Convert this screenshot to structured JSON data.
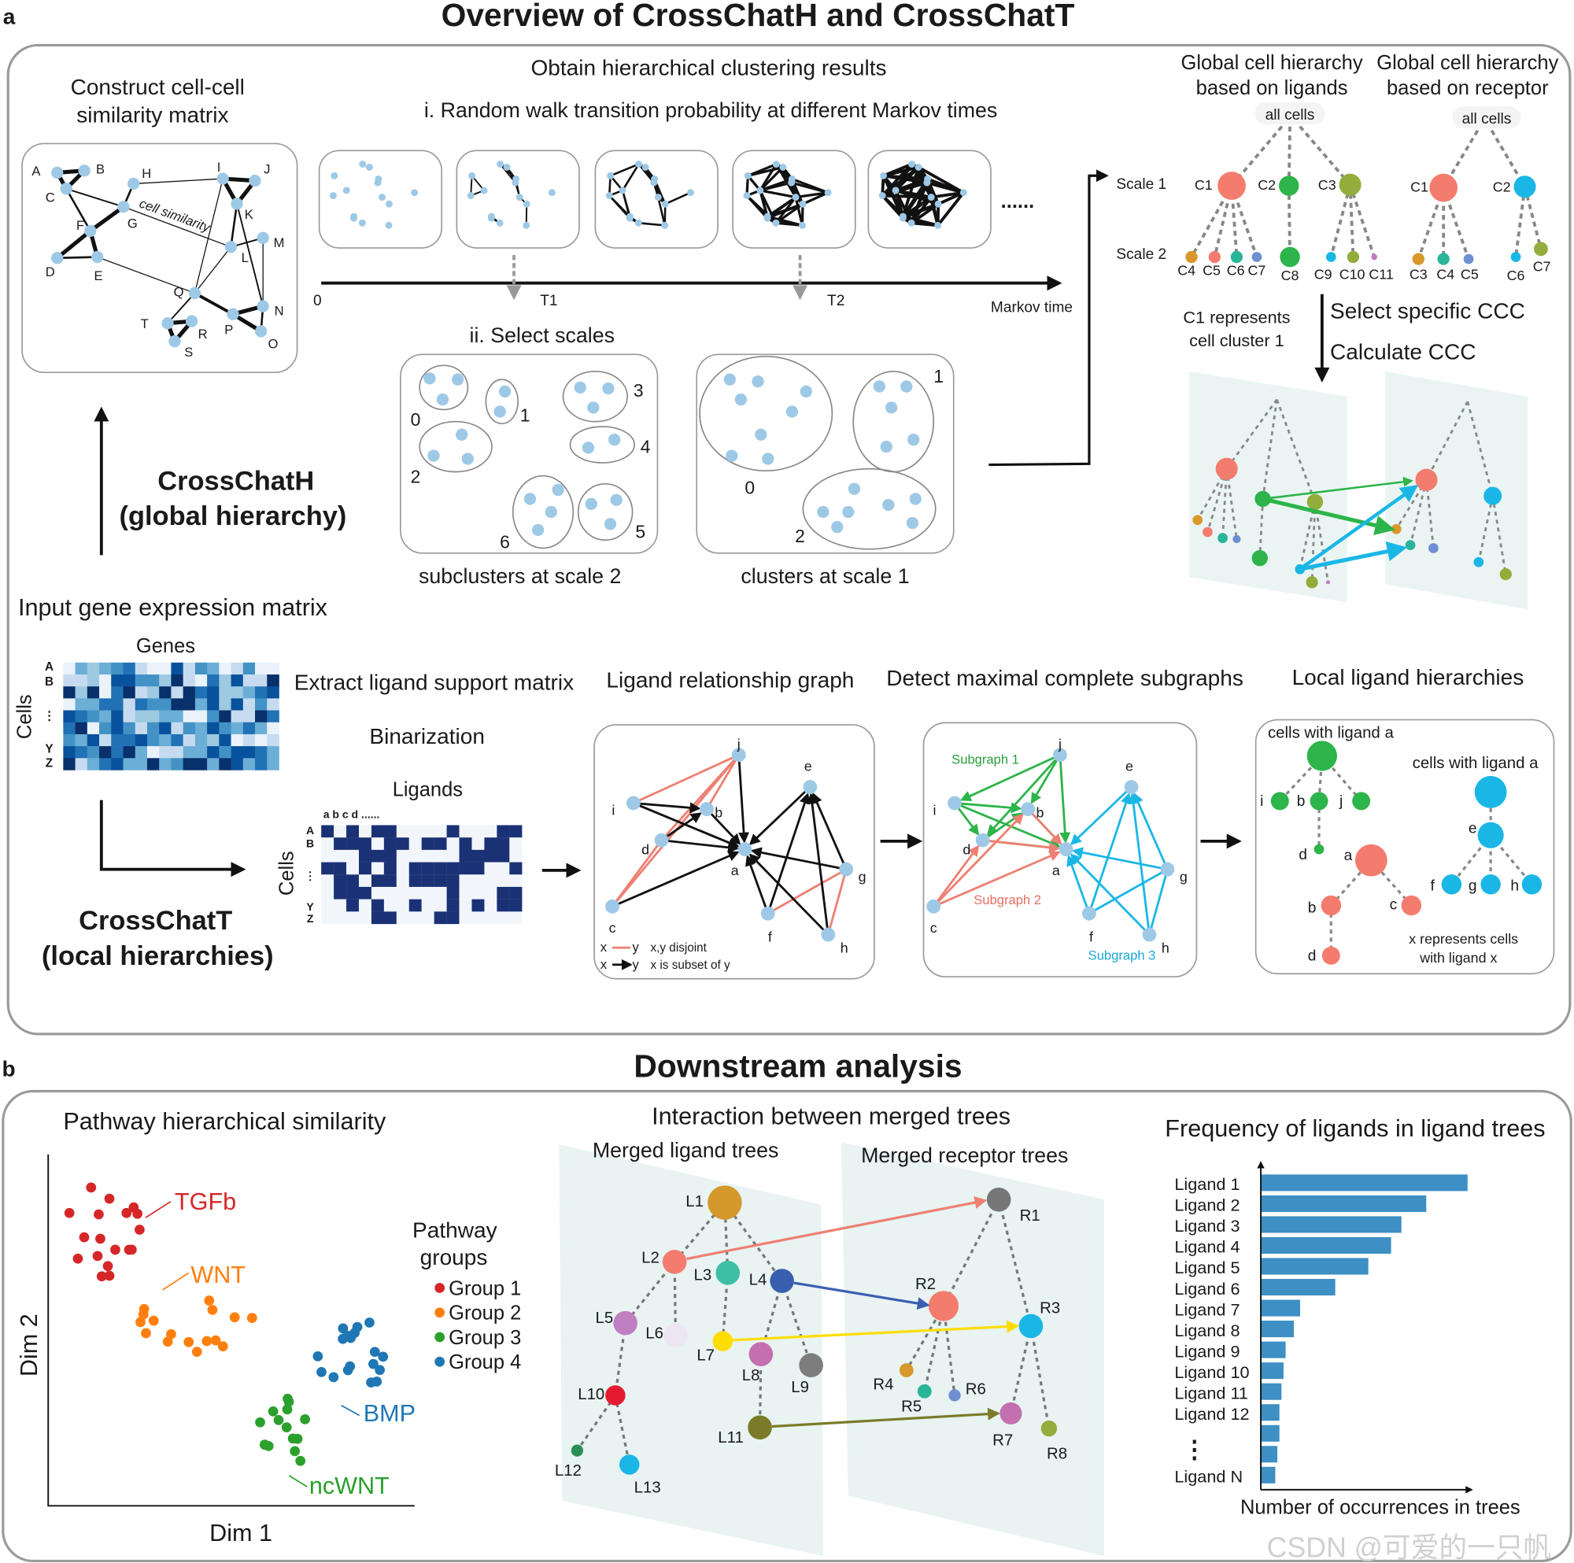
{
  "panel_a": {
    "label": "a",
    "title": "Overview of CrossChatH and CrossChatT"
  },
  "similarity": {
    "title": [
      "Construct cell-cell",
      "similarity matrix"
    ],
    "edge_label": "cell similarity",
    "nodes": [
      "A",
      "B",
      "C",
      "H",
      "I",
      "J",
      "G",
      "F",
      "D",
      "E",
      "K",
      "M",
      "L",
      "Q",
      "N",
      "T",
      "R",
      "P",
      "O",
      "S"
    ]
  },
  "clustering": {
    "title": "Obtain hierarchical clustering results",
    "step1": "i. Random walk transition probability at different Markov times",
    "more": "......",
    "axis_origin": "0",
    "t1": "T1",
    "t2": "T2",
    "axis_label": "Markov time",
    "step2": "ii. Select scales",
    "subclusters": [
      "0",
      "1",
      "2",
      "3",
      "4",
      "5",
      "6"
    ],
    "subcluster_caption": "subclusters at scale 2",
    "clusters": [
      "0",
      "1",
      "2"
    ],
    "cluster_caption": "clusters at scale 1"
  },
  "hierarchy": {
    "ligand_title": [
      "Global cell hierarchy",
      "based on ligands"
    ],
    "receptor_title": [
      "Global cell hierarchy",
      "based on receptor"
    ],
    "root": "all cells",
    "scale1": "Scale 1",
    "scale2": "Scale 2",
    "ligand_nodes": [
      "C1",
      "C2",
      "C3",
      "C4",
      "C5",
      "C6",
      "C7",
      "C8",
      "C9",
      "C10",
      "C11"
    ],
    "receptor_nodes": [
      "C1",
      "C2",
      "C3",
      "C4",
      "C5",
      "C6",
      "C7"
    ],
    "note": [
      "C1 represents",
      "cell cluster 1"
    ],
    "step_select": "Select specific CCC",
    "step_calc": "Calculate CCC"
  },
  "crosschath": [
    "CrossChatH",
    "(global hierarchy)"
  ],
  "input": {
    "title": "Input gene expression matrix",
    "cols": "Genes",
    "rows": "Cells",
    "row_labels": [
      "A",
      "B",
      "⋮",
      "Y",
      "Z"
    ]
  },
  "crosschatt": [
    "CrossChatT",
    "(local hierarchies)"
  ],
  "extract": {
    "title": "Extract ligand support matrix",
    "step": "Binarization",
    "cols": "Ligands",
    "col_labels": "a b c d ......",
    "rows": "Cells",
    "row_labels": [
      "A",
      "B",
      "⋮",
      "Y",
      "Z"
    ]
  },
  "graph": {
    "title": "Ligand relationship graph",
    "nodes": [
      "j",
      "e",
      "i",
      "b",
      "d",
      "a",
      "g",
      "c",
      "f",
      "h"
    ],
    "legend": [
      {
        "x": "x",
        "y": "y",
        "text": "x,y disjoint"
      },
      {
        "x": "x",
        "y": "y",
        "text": "x is subset of y"
      }
    ]
  },
  "subgraphs": {
    "title": "Detect maximal complete subgraphs",
    "nodes": [
      "j",
      "e",
      "i",
      "b",
      "d",
      "a",
      "g",
      "c",
      "f",
      "h"
    ],
    "labels": [
      "Subgraph 1",
      "Subgraph 2",
      "Subgraph 3"
    ]
  },
  "local": {
    "title": "Local ligand hierarchies",
    "captions": [
      "cells with ligand a",
      "cells with ligand a"
    ],
    "nodes": [
      "i",
      "b",
      "j",
      "d",
      "a",
      "b",
      "c",
      "d",
      "e",
      "f",
      "g",
      "h"
    ],
    "note": [
      "x represents cells",
      "with ligand x"
    ]
  },
  "panel_b": {
    "label": "b",
    "title": "Downstream analysis"
  },
  "pathway": {
    "title": "Pathway hierarchical similarity",
    "xlabel": "Dim 1",
    "ylabel": "Dim 2",
    "clusters": [
      "TGFb",
      "WNT",
      "BMP",
      "ncWNT"
    ],
    "legend_title": [
      "Pathway",
      "groups"
    ],
    "groups": [
      "Group 1",
      "Group 2",
      "Group 3",
      "Group 4"
    ],
    "group_colors": [
      "#d62728",
      "#ff7f0e",
      "#2ca02c",
      "#1f77b4"
    ]
  },
  "interaction": {
    "title": "Interaction between merged trees",
    "ligand_title": "Merged ligand trees",
    "receptor_title": "Merged receptor trees",
    "ligands": [
      "L1",
      "L2",
      "L3",
      "L4",
      "L5",
      "L6",
      "L7",
      "L8",
      "L9",
      "L10",
      "L11",
      "L12",
      "L13"
    ],
    "receptors": [
      "R1",
      "R2",
      "R3",
      "R4",
      "R5",
      "R6",
      "R7",
      "R8"
    ]
  },
  "chart_data": {
    "type": "bar",
    "orientation": "horizontal",
    "title": "Frequency of ligands in ligand trees",
    "xlabel": "Number of occurrences in trees",
    "ylabel": "",
    "categories": [
      "Ligand 1",
      "Ligand 2",
      "Ligand 3",
      "Ligand 4",
      "Ligand 5",
      "Ligand 6",
      "Ligand 7",
      "Ligand 8",
      "Ligand 9",
      "Ligand 10",
      "Ligand 11",
      "Ligand 12",
      "",
      "",
      "Ligand N"
    ],
    "values": [
      100,
      80,
      68,
      63,
      52,
      36,
      19,
      16,
      12,
      11,
      10,
      9,
      9,
      8,
      7
    ],
    "ellipsis": "⋮",
    "bar_color": "#3d8fc4",
    "grid": false
  },
  "colors": {
    "salmon": "#f47c6f",
    "green": "#2db44a",
    "olive": "#93ad3c",
    "cyan": "#1ab7e6",
    "navy": "#1a3275",
    "node_blue": "#9ec9e6"
  },
  "watermark": "CSDN @可爱的一只帆"
}
